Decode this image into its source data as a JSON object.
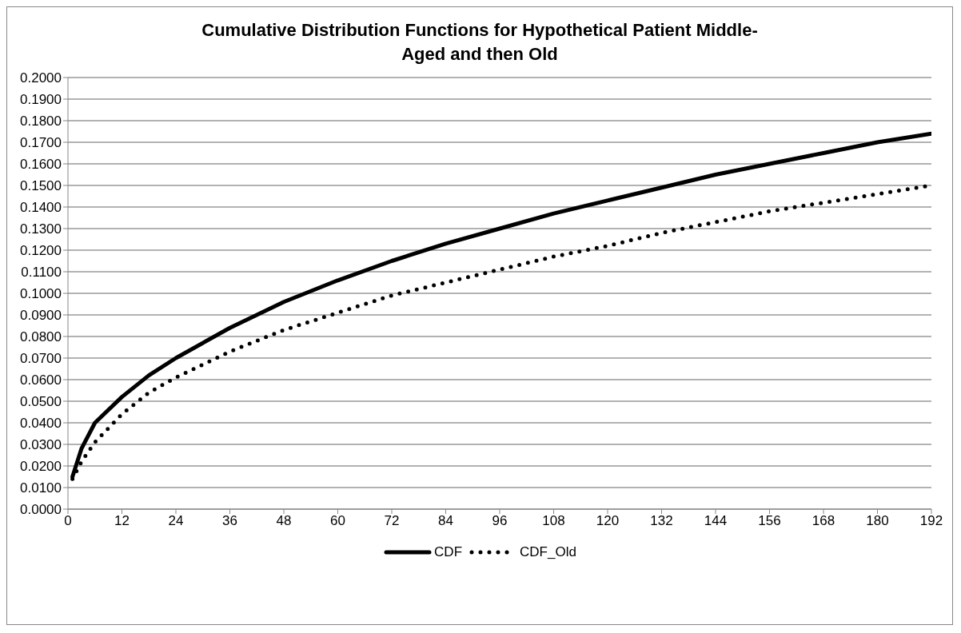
{
  "chart_data": {
    "type": "line",
    "title": "Cumulative Distribution Functions for Hypothetical Patient Middle-Aged and then Old",
    "x": [
      1,
      3,
      6,
      12,
      18,
      24,
      36,
      48,
      60,
      72,
      84,
      96,
      108,
      120,
      132,
      144,
      156,
      168,
      180,
      192
    ],
    "series": [
      {
        "name": "CDF",
        "color": "#000000",
        "line_style": "solid",
        "values": [
          0.015,
          0.028,
          0.04,
          0.052,
          0.062,
          0.07,
          0.084,
          0.096,
          0.106,
          0.115,
          0.123,
          0.13,
          0.137,
          0.143,
          0.149,
          0.155,
          0.16,
          0.165,
          0.17,
          0.174
        ]
      },
      {
        "name": "CDF_Old",
        "color": "#000000",
        "line_style": "dotted",
        "values": [
          0.014,
          0.022,
          0.031,
          0.044,
          0.054,
          0.061,
          0.073,
          0.083,
          0.091,
          0.099,
          0.105,
          0.111,
          0.117,
          0.122,
          0.128,
          0.133,
          0.138,
          0.142,
          0.146,
          0.15
        ]
      }
    ],
    "xlim": [
      0,
      192
    ],
    "xticks": [
      0,
      12,
      24,
      36,
      48,
      60,
      72,
      84,
      96,
      108,
      120,
      132,
      144,
      156,
      168,
      180,
      192
    ],
    "ylim": [
      0,
      0.2
    ],
    "yticks": [
      {
        "value": 0,
        "label": "0.0000"
      },
      {
        "value": 0.01,
        "label": "0.0100"
      },
      {
        "value": 0.02,
        "label": "0.0200"
      },
      {
        "value": 0.03,
        "label": "0.0300"
      },
      {
        "value": 0.04,
        "label": "0.0400"
      },
      {
        "value": 0.05,
        "label": "0.0500"
      },
      {
        "value": 0.06,
        "label": "0.0600"
      },
      {
        "value": 0.07,
        "label": "0.0700"
      },
      {
        "value": 0.08,
        "label": "0.0800"
      },
      {
        "value": 0.09,
        "label": "0.0900"
      },
      {
        "value": 0.1,
        "label": "0.1000"
      },
      {
        "value": 0.11,
        "label": "0.1100"
      },
      {
        "value": 0.12,
        "label": "0.1200"
      },
      {
        "value": 0.13,
        "label": "0.1300"
      },
      {
        "value": 0.14,
        "label": "0.1400"
      },
      {
        "value": 0.15,
        "label": "0.1500"
      },
      {
        "value": 0.16,
        "label": "0.1600"
      },
      {
        "value": 0.17,
        "label": "0.1700"
      },
      {
        "value": 0.18,
        "label": "0.1800"
      },
      {
        "value": 0.19,
        "label": "0.1900"
      },
      {
        "value": 0.2,
        "label": "0.2000"
      }
    ],
    "grid": "y",
    "legend": "bottom",
    "marker": "none"
  }
}
